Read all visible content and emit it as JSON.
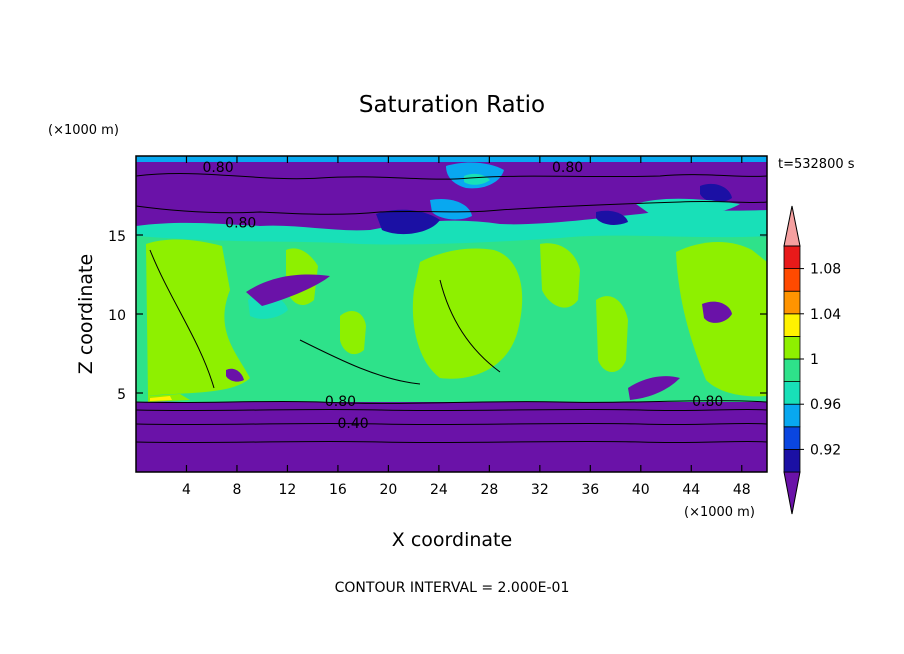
{
  "chart_data": {
    "type": "contour",
    "title": "Saturation Ratio",
    "xlabel": "X coordinate",
    "ylabel": "Z coordinate",
    "x_unit": "(×1000 m)",
    "y_unit": "(×1000 m)",
    "time_label": "t=532800 s",
    "contour_note": "CONTOUR INTERVAL = 2.000E-01",
    "xlim": [
      0,
      50
    ],
    "ylim": [
      0,
      20
    ],
    "x_ticks": [
      4,
      8,
      12,
      16,
      20,
      24,
      28,
      32,
      36,
      40,
      44,
      48
    ],
    "y_ticks": [
      5,
      10,
      15
    ],
    "contour_labels": [
      {
        "text": "0.80",
        "x": 6.5,
        "z": 19.3
      },
      {
        "text": "0.80",
        "x": 8.3,
        "z": 15.8
      },
      {
        "text": "0.80",
        "x": 34.2,
        "z": 19.3
      },
      {
        "text": "0.80",
        "x": 16.2,
        "z": 4.5
      },
      {
        "text": "0.80",
        "x": 45.3,
        "z": 4.5
      },
      {
        "text": "0.40",
        "x": 17.2,
        "z": 3.1
      }
    ],
    "colorbar": {
      "levels": [
        0.92,
        0.96,
        1,
        1.04,
        1.08
      ],
      "level_labels": [
        "0.92",
        "0.96",
        "1",
        "1.04",
        "1.08"
      ],
      "colors": [
        "#6a12a8",
        "#1b10a4",
        "#0a46e0",
        "#08a8f0",
        "#18e0b8",
        "#2ee28a",
        "#8ef000",
        "#fff200",
        "#ff9400",
        "#ff4a00",
        "#e81a1a",
        "#f5a0a0"
      ]
    }
  }
}
